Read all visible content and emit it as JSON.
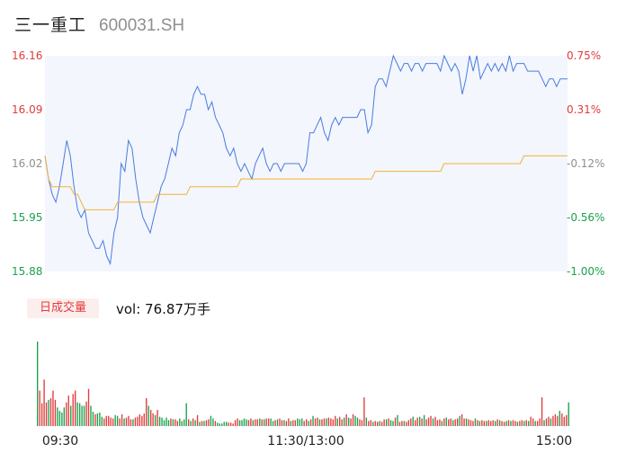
{
  "header": {
    "name": "三一重工",
    "code": "600031.SH"
  },
  "volume": {
    "tag": "日成交量",
    "label": "vol: 76.87万手"
  },
  "colors": {
    "price_line": "#4a7be0",
    "avg_line": "#f2b233",
    "up": "#e23b3b",
    "down": "#1aa14e",
    "flat": "#8f8f8f",
    "area": "#f3f6fd"
  },
  "chart_data": {
    "type": "line",
    "prev_close": 16.04,
    "ylim": [
      15.88,
      16.16
    ],
    "y_ticks": [
      "16.16",
      "16.09",
      "16.02",
      "15.95",
      "15.88"
    ],
    "pct_ticks": [
      "0.75%",
      "0.31%",
      "-0.12%",
      "-0.56%",
      "-1.00%"
    ],
    "x_ticks": [
      "09:30",
      "11:30/13:00",
      "15:00"
    ],
    "price": [
      16.03,
      16.0,
      15.98,
      15.97,
      15.99,
      16.02,
      16.05,
      16.03,
      15.99,
      15.96,
      15.95,
      15.96,
      15.93,
      15.92,
      15.91,
      15.91,
      15.92,
      15.9,
      15.89,
      15.93,
      15.95,
      16.02,
      16.01,
      16.05,
      16.04,
      16.0,
      15.97,
      15.95,
      15.94,
      15.93,
      15.95,
      15.97,
      15.99,
      16.0,
      16.02,
      16.04,
      16.03,
      16.06,
      16.07,
      16.09,
      16.09,
      16.11,
      16.12,
      16.11,
      16.11,
      16.09,
      16.1,
      16.08,
      16.07,
      16.06,
      16.04,
      16.03,
      16.04,
      16.02,
      16.01,
      16.02,
      16.01,
      16.0,
      16.02,
      16.03,
      16.04,
      16.02,
      16.01,
      16.02,
      16.02,
      16.01,
      16.02,
      16.02,
      16.02,
      16.02,
      16.02,
      16.01,
      16.02,
      16.06,
      16.06,
      16.07,
      16.08,
      16.06,
      16.05,
      16.07,
      16.08,
      16.07,
      16.08,
      16.08,
      16.08,
      16.08,
      16.08,
      16.09,
      16.09,
      16.06,
      16.07,
      16.12,
      16.13,
      16.13,
      16.12,
      16.14,
      16.16,
      16.15,
      16.14,
      16.15,
      16.15,
      16.14,
      16.15,
      16.15,
      16.14,
      16.15,
      16.15,
      16.15,
      16.15,
      16.14,
      16.16,
      16.15,
      16.14,
      16.15,
      16.14,
      16.11,
      16.13,
      16.16,
      16.14,
      16.16,
      16.13,
      16.14,
      16.15,
      16.14,
      16.15,
      16.14,
      16.15,
      16.14,
      16.16,
      16.14,
      16.15,
      16.15,
      16.15,
      16.14,
      16.14,
      16.14,
      16.14,
      16.13,
      16.12,
      16.13,
      16.13,
      16.12,
      16.13,
      16.13,
      16.13
    ],
    "avg": [
      16.03,
      16.0,
      15.99,
      15.99,
      15.99,
      15.99,
      15.99,
      15.99,
      15.98,
      15.98,
      15.97,
      15.96,
      15.96,
      15.96,
      15.96,
      15.96,
      15.96,
      15.96,
      15.96,
      15.96,
      15.97,
      15.97,
      15.97,
      15.97,
      15.97,
      15.97,
      15.97,
      15.97,
      15.97,
      15.97,
      15.97,
      15.98,
      15.98,
      15.98,
      15.98,
      15.98,
      15.98,
      15.98,
      15.98,
      15.98,
      15.99,
      15.99,
      15.99,
      15.99,
      15.99,
      15.99,
      15.99,
      15.99,
      15.99,
      15.99,
      15.99,
      15.99,
      15.99,
      15.99,
      16.0,
      16.0,
      16.0,
      16.0,
      16.0,
      16.0,
      16.0,
      16.0,
      16.0,
      16.0,
      16.0,
      16.0,
      16.0,
      16.0,
      16.0,
      16.0,
      16.0,
      16.0,
      16.0,
      16.0,
      16.0,
      16.0,
      16.0,
      16.0,
      16.0,
      16.0,
      16.0,
      16.0,
      16.0,
      16.0,
      16.0,
      16.0,
      16.0,
      16.0,
      16.0,
      16.0,
      16.0,
      16.01,
      16.01,
      16.01,
      16.01,
      16.01,
      16.01,
      16.01,
      16.01,
      16.01,
      16.01,
      16.01,
      16.01,
      16.01,
      16.01,
      16.01,
      16.01,
      16.01,
      16.01,
      16.01,
      16.02,
      16.02,
      16.02,
      16.02,
      16.02,
      16.02,
      16.02,
      16.02,
      16.02,
      16.02,
      16.02,
      16.02,
      16.02,
      16.02,
      16.02,
      16.02,
      16.02,
      16.02,
      16.02,
      16.02,
      16.02,
      16.02,
      16.03,
      16.03,
      16.03,
      16.03,
      16.03,
      16.03,
      16.03,
      16.03,
      16.03,
      16.03,
      16.03,
      16.03,
      16.03
    ],
    "volumes": [
      1.0,
      0.42,
      0.27,
      0.55,
      0.28,
      0.31,
      0.33,
      0.42,
      0.31,
      0.22,
      0.18,
      0.16,
      0.22,
      0.28,
      0.36,
      0.24,
      0.38,
      0.42,
      0.28,
      0.27,
      0.24,
      0.24,
      0.29,
      0.44,
      0.24,
      0.17,
      0.14,
      0.15,
      0.16,
      0.11,
      0.09,
      0.12,
      0.12,
      0.1,
      0.09,
      0.13,
      0.12,
      0.09,
      0.14,
      0.09,
      0.1,
      0.12,
      0.08,
      0.08,
      0.1,
      0.11,
      0.14,
      0.12,
      0.15,
      0.33,
      0.24,
      0.19,
      0.15,
      0.13,
      0.19,
      0.11,
      0.1,
      0.07,
      0.1,
      0.07,
      0.09,
      0.08,
      0.08,
      0.06,
      0.09,
      0.06,
      0.08,
      0.27,
      0.08,
      0.06,
      0.09,
      0.07,
      0.13,
      0.05,
      0.06,
      0.06,
      0.07,
      0.08,
      0.12,
      0.09,
      0.06,
      0.04,
      0.03,
      0.03,
      0.05,
      0.05,
      0.04,
      0.04,
      0.03,
      0.07,
      0.09,
      0.07,
      0.07,
      0.09,
      0.08,
      0.07,
      0.09,
      0.07,
      0.08,
      0.08,
      0.09,
      0.08,
      0.08,
      0.09,
      0.09,
      0.09,
      0.06,
      0.07,
      0.08,
      0.09,
      0.07,
      0.07,
      0.06,
      0.09,
      0.06,
      0.07,
      0.07,
      0.09,
      0.08,
      0.09,
      0.06,
      0.08,
      0.06,
      0.08,
      0.12,
      0.09,
      0.1,
      0.08,
      0.08,
      0.09,
      0.09,
      0.1,
      0.09,
      0.08,
      0.12,
      0.09,
      0.11,
      0.08,
      0.1,
      0.14,
      0.1,
      0.09,
      0.14,
      0.12,
      0.1,
      0.08,
      0.07,
      0.34,
      0.1,
      0.06,
      0.07,
      0.05,
      0.06,
      0.05,
      0.06,
      0.05,
      0.08,
      0.08,
      0.09,
      0.07,
      0.06,
      0.1,
      0.13,
      0.05,
      0.06,
      0.06,
      0.05,
      0.07,
      0.09,
      0.11,
      0.07,
      0.1,
      0.11,
      0.09,
      0.13,
      0.08,
      0.1,
      0.12,
      0.09,
      0.11,
      0.07,
      0.08,
      0.06,
      0.09,
      0.1,
      0.08,
      0.09,
      0.07,
      0.08,
      0.09,
      0.12,
      0.14,
      0.09,
      0.09,
      0.08,
      0.07,
      0.06,
      0.09,
      0.07,
      0.06,
      0.07,
      0.06,
      0.06,
      0.07,
      0.06,
      0.07,
      0.06,
      0.08,
      0.07,
      0.06,
      0.05,
      0.06,
      0.07,
      0.06,
      0.07,
      0.06,
      0.05,
      0.06,
      0.07,
      0.06,
      0.07,
      0.06,
      0.11,
      0.09,
      0.06,
      0.06,
      0.09,
      0.34,
      0.07,
      0.09,
      0.11,
      0.09,
      0.12,
      0.14,
      0.12,
      0.18,
      0.15,
      0.11,
      0.13,
      0.28
    ],
    "volume_colors": [
      "down",
      "up",
      "up",
      "up",
      "up",
      "down",
      "up",
      "up",
      "up",
      "down",
      "down",
      "down",
      "down",
      "up",
      "up",
      "down",
      "up",
      "up",
      "down",
      "down",
      "down",
      "down",
      "up",
      "up",
      "down",
      "down",
      "up",
      "down",
      "down",
      "down",
      "up",
      "up",
      "up",
      "up",
      "up",
      "down",
      "down",
      "up",
      "up",
      "down",
      "up",
      "up",
      "up",
      "down",
      "up",
      "up",
      "up",
      "up",
      "up",
      "up",
      "down",
      "up",
      "up",
      "down",
      "up",
      "down",
      "down",
      "down",
      "down",
      "down",
      "up",
      "down",
      "up",
      "up",
      "down",
      "down",
      "down",
      "down",
      "up",
      "down",
      "up",
      "down",
      "up",
      "down",
      "up",
      "down",
      "up",
      "up",
      "down",
      "down",
      "up",
      "down",
      "down",
      "down",
      "down",
      "down",
      "up",
      "up",
      "up",
      "up",
      "up",
      "down",
      "down",
      "down",
      "down",
      "up",
      "up",
      "down",
      "up",
      "up",
      "down",
      "up",
      "down",
      "up",
      "up",
      "down",
      "down",
      "up",
      "down",
      "up",
      "up",
      "down",
      "up",
      "up",
      "down",
      "up",
      "up",
      "down",
      "down",
      "down",
      "up",
      "up",
      "down",
      "up",
      "down",
      "up",
      "up",
      "down",
      "up",
      "up",
      "down",
      "up",
      "up",
      "up",
      "up",
      "down",
      "up",
      "up",
      "down",
      "up",
      "down",
      "up",
      "up",
      "down",
      "down",
      "up",
      "up",
      "up",
      "down",
      "up",
      "up",
      "down",
      "up",
      "up",
      "down",
      "up",
      "up",
      "down",
      "up",
      "down",
      "down",
      "up",
      "down",
      "up",
      "up",
      "down",
      "up",
      "up",
      "up",
      "down",
      "up",
      "up",
      "down",
      "up",
      "down",
      "up",
      "up",
      "up",
      "down",
      "up",
      "up",
      "up",
      "down",
      "up",
      "down",
      "up",
      "up",
      "down",
      "up",
      "up",
      "down",
      "up",
      "up",
      "down",
      "up",
      "up",
      "up",
      "down",
      "up",
      "down",
      "up",
      "up",
      "down",
      "up",
      "up",
      "up",
      "down",
      "up",
      "down",
      "up",
      "up",
      "down",
      "up",
      "down",
      "up",
      "up",
      "down",
      "up",
      "up",
      "down",
      "up",
      "down",
      "up",
      "up",
      "down",
      "up",
      "up",
      "up",
      "down",
      "up",
      "up",
      "down",
      "up",
      "up",
      "up",
      "down",
      "up",
      "up",
      "up",
      "down",
      "up",
      "up",
      "up",
      "down",
      "up",
      "up",
      "up",
      "down"
    ]
  }
}
